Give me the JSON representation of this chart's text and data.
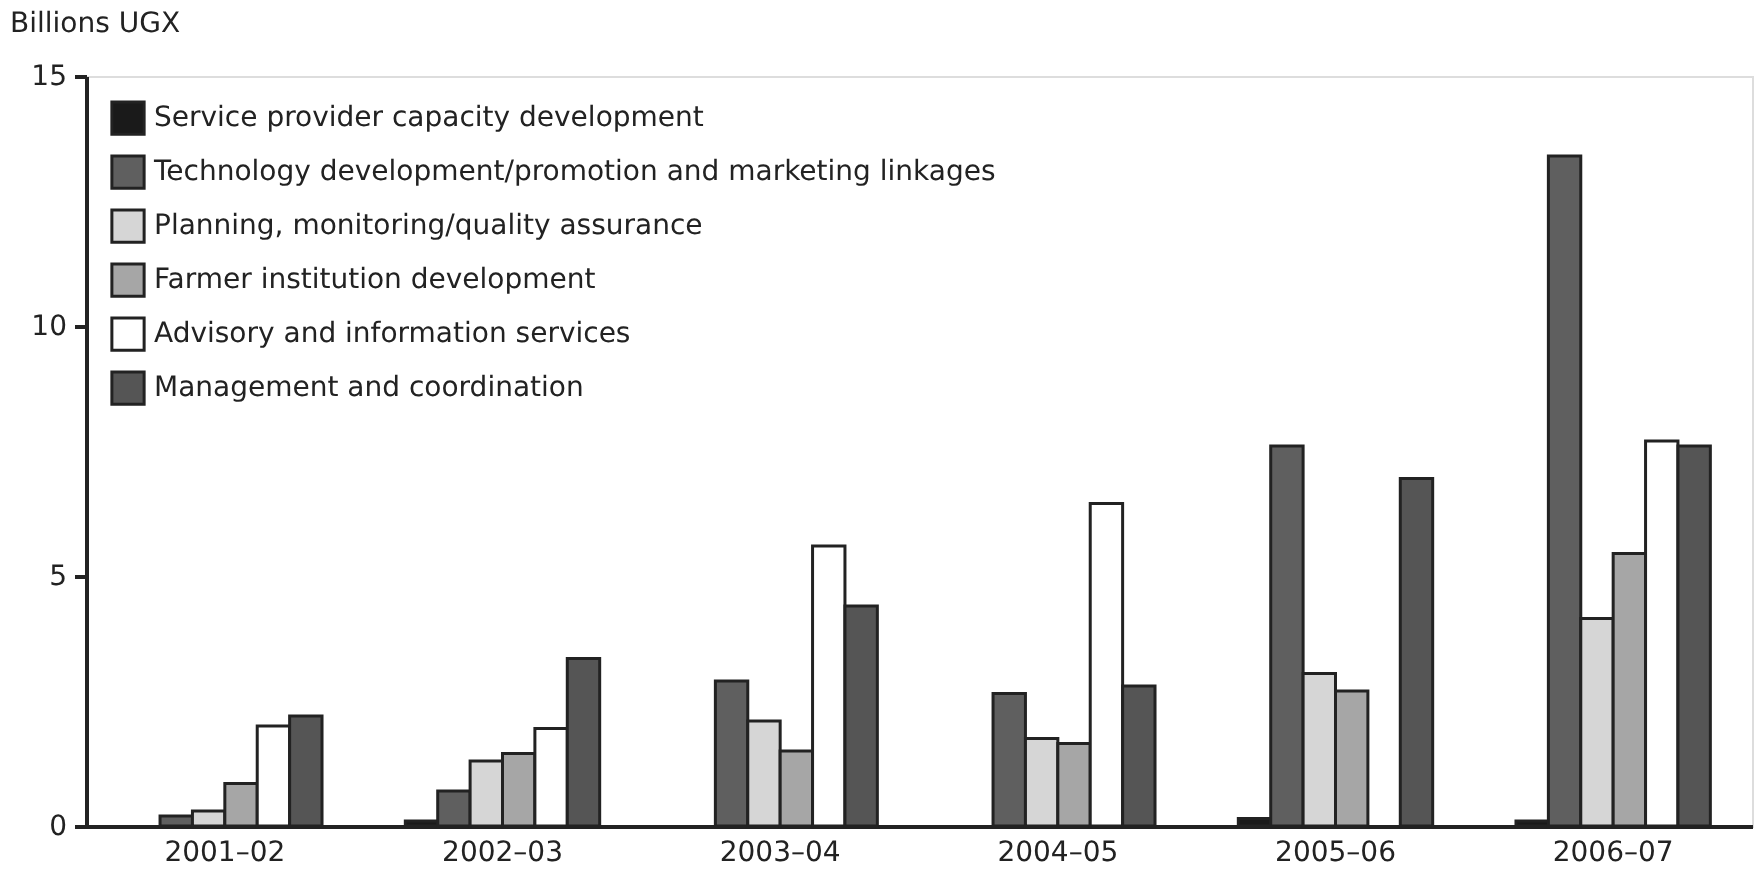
{
  "chart_data": {
    "type": "bar",
    "ylabel": "Billions UGX",
    "categories": [
      "2001–02",
      "2002–03",
      "2003–04",
      "2004–05",
      "2005–06",
      "2006–07"
    ],
    "series": [
      {
        "name": "Service provider capacity development",
        "color": "#1a1a1a",
        "values": [
          null,
          0.1,
          null,
          null,
          0.15,
          0.1
        ]
      },
      {
        "name": "Technology development/promotion and marketing linkages",
        "color": "#5f5f5f",
        "values": [
          0.2,
          0.7,
          2.9,
          2.65,
          7.6,
          13.4
        ]
      },
      {
        "name": "Planning, monitoring/quality assurance",
        "color": "#d6d6d6",
        "values": [
          0.3,
          1.3,
          2.1,
          1.75,
          3.05,
          4.15
        ]
      },
      {
        "name": "Farmer institution development",
        "color": "#a6a6a6",
        "values": [
          0.85,
          1.45,
          1.5,
          1.65,
          2.7,
          5.45
        ]
      },
      {
        "name": "Advisory and information services",
        "color": "#ffffff",
        "values": [
          2.0,
          1.95,
          5.6,
          6.45,
          null,
          7.7
        ]
      },
      {
        "name": "Management and coordination",
        "color": "#555555",
        "values": [
          2.2,
          3.35,
          4.4,
          2.8,
          6.95,
          7.6
        ]
      }
    ],
    "ylim": [
      0,
      15
    ],
    "yticks": [
      0,
      5,
      10,
      15
    ],
    "grid": false,
    "legend": "top left"
  }
}
